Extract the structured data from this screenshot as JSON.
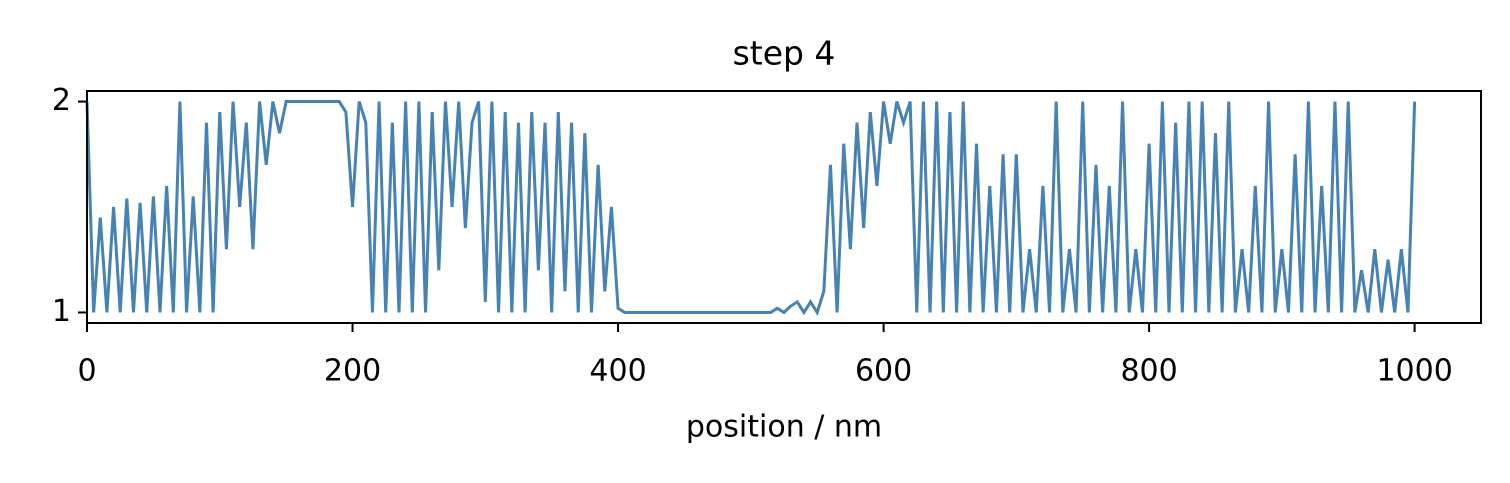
{
  "chart_data": {
    "type": "line",
    "title": "step 4",
    "xlabel": "position / nm",
    "x": [
      0,
      5,
      10,
      15,
      20,
      25,
      30,
      35,
      40,
      45,
      50,
      55,
      60,
      65,
      70,
      75,
      80,
      85,
      90,
      95,
      100,
      105,
      110,
      115,
      120,
      125,
      130,
      135,
      140,
      145,
      150,
      155,
      160,
      165,
      170,
      175,
      180,
      185,
      190,
      195,
      200,
      205,
      210,
      215,
      220,
      225,
      230,
      235,
      240,
      245,
      250,
      255,
      260,
      265,
      270,
      275,
      280,
      285,
      290,
      295,
      300,
      305,
      310,
      315,
      320,
      325,
      330,
      335,
      340,
      345,
      350,
      355,
      360,
      365,
      370,
      375,
      380,
      385,
      390,
      395,
      400,
      405,
      410,
      415,
      420,
      425,
      430,
      435,
      440,
      445,
      450,
      455,
      460,
      465,
      470,
      475,
      480,
      485,
      490,
      495,
      500,
      505,
      510,
      515,
      520,
      525,
      530,
      535,
      540,
      545,
      550,
      555,
      560,
      565,
      570,
      575,
      580,
      585,
      590,
      595,
      600,
      605,
      610,
      615,
      620,
      625,
      630,
      635,
      640,
      645,
      650,
      655,
      660,
      665,
      670,
      675,
      680,
      685,
      690,
      695,
      700,
      705,
      710,
      715,
      720,
      725,
      730,
      735,
      740,
      745,
      750,
      755,
      760,
      765,
      770,
      775,
      780,
      785,
      790,
      795,
      800,
      805,
      810,
      815,
      820,
      825,
      830,
      835,
      840,
      845,
      850,
      855,
      860,
      865,
      870,
      875,
      880,
      885,
      890,
      895,
      900,
      905,
      910,
      915,
      920,
      925,
      930,
      935,
      940,
      945,
      950,
      955,
      960,
      965,
      970,
      975,
      980,
      985,
      990,
      995,
      1000
    ],
    "series": [
      {
        "color": "#4682b4",
        "values": [
          2.0,
          1.0,
          1.45,
          1.0,
          1.5,
          1.0,
          1.54,
          1.0,
          1.52,
          1.0,
          1.55,
          1.0,
          1.6,
          1.0,
          2.0,
          1.0,
          1.55,
          1.0,
          1.9,
          1.0,
          1.95,
          1.3,
          2.0,
          1.5,
          1.9,
          1.3,
          2.0,
          1.7,
          2.0,
          1.85,
          2.0,
          2.0,
          2.0,
          2.0,
          2.0,
          2.0,
          2.0,
          2.0,
          2.0,
          1.95,
          1.5,
          2.0,
          1.9,
          1.0,
          2.0,
          1.0,
          1.9,
          1.0,
          2.0,
          1.0,
          2.0,
          1.0,
          1.95,
          1.2,
          2.0,
          1.5,
          2.0,
          1.4,
          1.9,
          2.0,
          1.05,
          2.0,
          1.0,
          1.95,
          1.0,
          1.9,
          1.0,
          1.95,
          1.2,
          1.9,
          1.0,
          1.95,
          1.1,
          1.9,
          1.0,
          1.85,
          1.0,
          1.7,
          1.1,
          1.5,
          1.02,
          1.0,
          1.0,
          1.0,
          1.0,
          1.0,
          1.0,
          1.0,
          1.0,
          1.0,
          1.0,
          1.0,
          1.0,
          1.0,
          1.0,
          1.0,
          1.0,
          1.0,
          1.0,
          1.0,
          1.0,
          1.0,
          1.0,
          1.0,
          1.02,
          1.0,
          1.03,
          1.05,
          1.0,
          1.05,
          1.0,
          1.1,
          1.7,
          1.0,
          1.8,
          1.3,
          1.9,
          1.4,
          1.95,
          1.6,
          2.0,
          1.8,
          2.0,
          1.9,
          2.0,
          1.0,
          2.0,
          1.0,
          2.0,
          1.0,
          1.95,
          1.0,
          2.0,
          1.0,
          1.8,
          1.0,
          1.6,
          1.0,
          1.75,
          1.0,
          1.75,
          1.0,
          1.3,
          1.0,
          1.6,
          1.0,
          2.0,
          1.0,
          1.3,
          1.0,
          2.0,
          1.0,
          1.7,
          1.0,
          1.6,
          1.0,
          2.0,
          1.0,
          1.3,
          1.0,
          1.8,
          1.0,
          2.0,
          1.0,
          1.9,
          1.0,
          2.0,
          1.0,
          2.0,
          1.0,
          1.85,
          1.0,
          2.0,
          1.0,
          1.3,
          1.0,
          1.6,
          1.0,
          2.0,
          1.0,
          1.3,
          1.0,
          1.75,
          1.0,
          2.0,
          1.0,
          1.6,
          1.0,
          2.0,
          1.0,
          2.0,
          1.0,
          1.2,
          1.0,
          1.3,
          1.0,
          1.25,
          1.0,
          1.3,
          1.0,
          2.0
        ]
      }
    ],
    "xlim": [
      0,
      1050
    ],
    "ylim": [
      0.95,
      2.05
    ],
    "xticks": [
      0,
      200,
      400,
      600,
      800,
      1000
    ],
    "yticks": [
      1,
      2
    ]
  }
}
